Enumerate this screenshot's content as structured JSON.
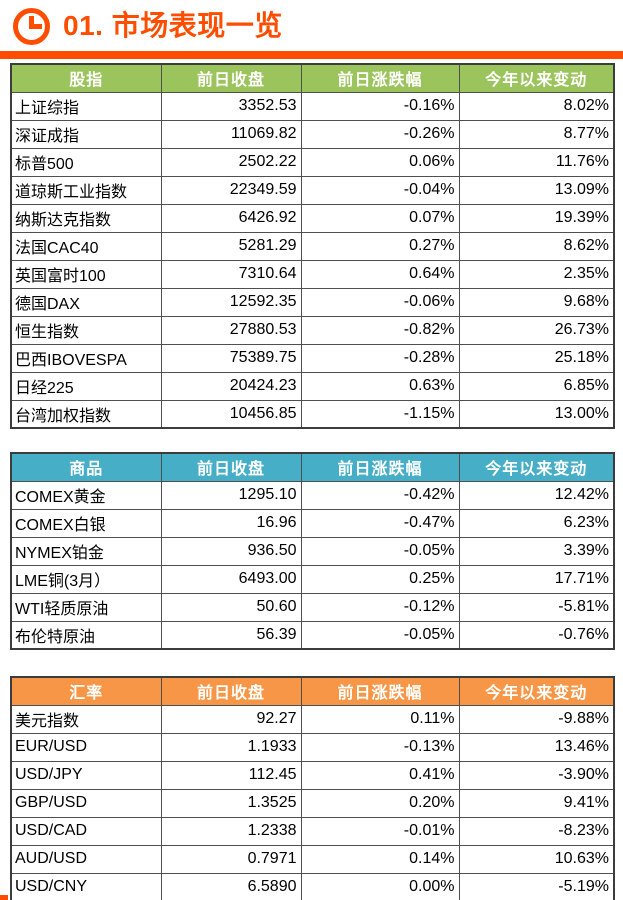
{
  "page": {
    "title": "01. 市场表现一览",
    "title_icon": "clock-icon",
    "accent_color": "#FF4D00",
    "border_color": "#4f4f4f"
  },
  "tables": [
    {
      "id": "stock-indices",
      "header_color": "#9BC45C",
      "columns": [
        "股指",
        "前日收盘",
        "前日涨跌幅",
        "今年以来变动"
      ],
      "rows": [
        [
          "上证综指",
          "3352.53",
          "-0.16%",
          "8.02%"
        ],
        [
          "深证成指",
          "11069.82",
          "-0.26%",
          "8.77%"
        ],
        [
          "标普500",
          "2502.22",
          "0.06%",
          "11.76%"
        ],
        [
          "道琼斯工业指数",
          "22349.59",
          "-0.04%",
          "13.09%"
        ],
        [
          "纳斯达克指数",
          "6426.92",
          "0.07%",
          "19.39%"
        ],
        [
          "法国CAC40",
          "5281.29",
          "0.27%",
          "8.62%"
        ],
        [
          "英国富时100",
          "7310.64",
          "0.64%",
          "2.35%"
        ],
        [
          "德国DAX",
          "12592.35",
          "-0.06%",
          "9.68%"
        ],
        [
          "恒生指数",
          "27880.53",
          "-0.82%",
          "26.73%"
        ],
        [
          "巴西IBOVESPA",
          "75389.75",
          "-0.28%",
          "25.18%"
        ],
        [
          "日经225",
          "20424.23",
          "0.63%",
          "6.85%"
        ],
        [
          "台湾加权指数",
          "10456.85",
          "-1.15%",
          "13.00%"
        ]
      ]
    },
    {
      "id": "commodities",
      "header_color": "#46AEC6",
      "columns": [
        "商品",
        "前日收盘",
        "前日涨跌幅",
        "今年以来变动"
      ],
      "rows": [
        [
          "COMEX黄金",
          "1295.10",
          "-0.42%",
          "12.42%"
        ],
        [
          "COMEX白银",
          "16.96",
          "-0.47%",
          "6.23%"
        ],
        [
          "NYMEX铂金",
          "936.50",
          "-0.05%",
          "3.39%"
        ],
        [
          "LME铜(3月）",
          "6493.00",
          "0.25%",
          "17.71%"
        ],
        [
          "WTI轻质原油",
          "50.60",
          "-0.12%",
          "-5.81%"
        ],
        [
          "布伦特原油",
          "56.39",
          "-0.05%",
          "-0.76%"
        ]
      ]
    },
    {
      "id": "exchange-rates",
      "header_color": "#F79646",
      "columns": [
        "汇率",
        "前日收盘",
        "前日涨跌幅",
        "今年以来变动"
      ],
      "rows": [
        [
          "美元指数",
          "92.27",
          "0.11%",
          "-9.88%"
        ],
        [
          "EUR/USD",
          "1.1933",
          "-0.13%",
          "13.46%"
        ],
        [
          "USD/JPY",
          "112.45",
          "0.41%",
          "-3.90%"
        ],
        [
          "GBP/USD",
          "1.3525",
          "0.20%",
          "9.41%"
        ],
        [
          "USD/CAD",
          "1.2338",
          "-0.01%",
          "-8.23%"
        ],
        [
          "AUD/USD",
          "0.7971",
          "0.14%",
          "10.63%"
        ],
        [
          "USD/CNY",
          "6.5890",
          "0.00%",
          "-5.19%"
        ]
      ]
    }
  ]
}
